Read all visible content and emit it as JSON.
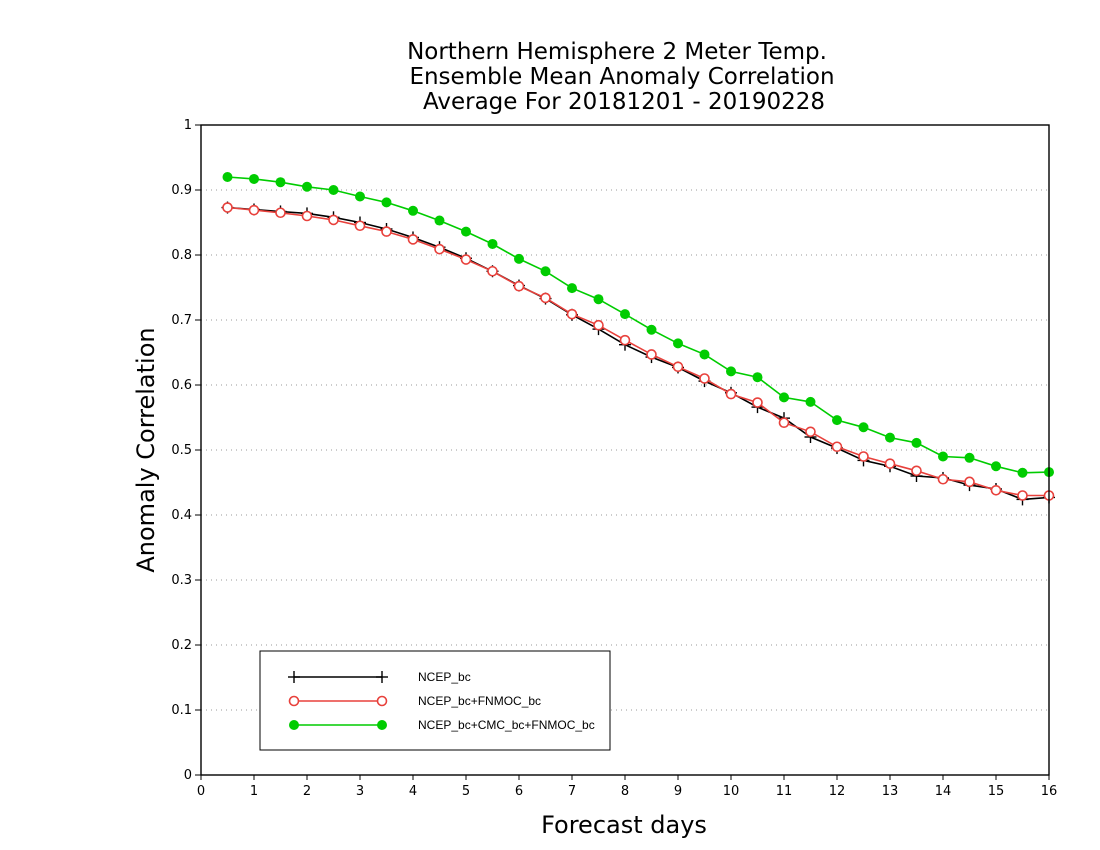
{
  "chart_data": {
    "type": "line",
    "title_lines": [
      "Northern Hemisphere 2 Meter Temp.",
      "Ensemble Mean Anomaly Correlation",
      "Average For 20181201 - 20190228"
    ],
    "xlabel": "Forecast days",
    "ylabel": "Anomaly Correlation",
    "xlim": [
      0,
      16
    ],
    "ylim": [
      0,
      1
    ],
    "xticks": [
      "0",
      "1",
      "2",
      "3",
      "4",
      "5",
      "6",
      "7",
      "8",
      "9",
      "10",
      "11",
      "12",
      "13",
      "14",
      "15",
      "16"
    ],
    "yticks": [
      "0",
      "0.1",
      "0.2",
      "0.3",
      "0.4",
      "0.5",
      "0.6",
      "0.7",
      "0.8",
      "0.9",
      "1"
    ],
    "grid": "horizontal dotted",
    "legend_position": "bottom-left",
    "x": [
      0.5,
      1,
      1.5,
      2,
      2.5,
      3,
      3.5,
      4,
      4.5,
      5,
      5.5,
      6,
      6.5,
      7,
      7.5,
      8,
      8.5,
      9,
      9.5,
      10,
      10.5,
      11,
      11.5,
      12,
      12.5,
      13,
      13.5,
      14,
      14.5,
      15,
      15.5,
      16
    ],
    "series": [
      {
        "name": "NCEP_bc",
        "color": "#000000",
        "marker": "plus",
        "values": [
          0.873,
          0.87,
          0.867,
          0.864,
          0.858,
          0.85,
          0.84,
          0.827,
          0.812,
          0.795,
          0.775,
          0.753,
          0.733,
          0.708,
          0.686,
          0.662,
          0.643,
          0.627,
          0.606,
          0.588,
          0.566,
          0.549,
          0.52,
          0.503,
          0.484,
          0.475,
          0.46,
          0.457,
          0.446,
          0.44,
          0.424,
          0.427
        ]
      },
      {
        "name": "NCEP_bc+FNMOC_bc",
        "color": "#e8413c",
        "marker": "open-circle",
        "values": [
          0.873,
          0.869,
          0.865,
          0.86,
          0.854,
          0.845,
          0.836,
          0.824,
          0.809,
          0.793,
          0.775,
          0.752,
          0.734,
          0.709,
          0.692,
          0.669,
          0.647,
          0.628,
          0.61,
          0.586,
          0.573,
          0.542,
          0.528,
          0.505,
          0.49,
          0.479,
          0.468,
          0.455,
          0.451,
          0.438,
          0.43,
          0.43
        ]
      },
      {
        "name": "NCEP_bc+CMC_bc+FNMOC_bc",
        "color": "#00cc00",
        "marker": "filled-circle",
        "values": [
          0.92,
          0.917,
          0.912,
          0.905,
          0.9,
          0.89,
          0.881,
          0.868,
          0.853,
          0.836,
          0.817,
          0.794,
          0.775,
          0.749,
          0.732,
          0.709,
          0.685,
          0.664,
          0.647,
          0.621,
          0.612,
          0.581,
          0.574,
          0.546,
          0.535,
          0.519,
          0.511,
          0.49,
          0.488,
          0.475,
          0.465,
          0.466
        ]
      }
    ]
  }
}
